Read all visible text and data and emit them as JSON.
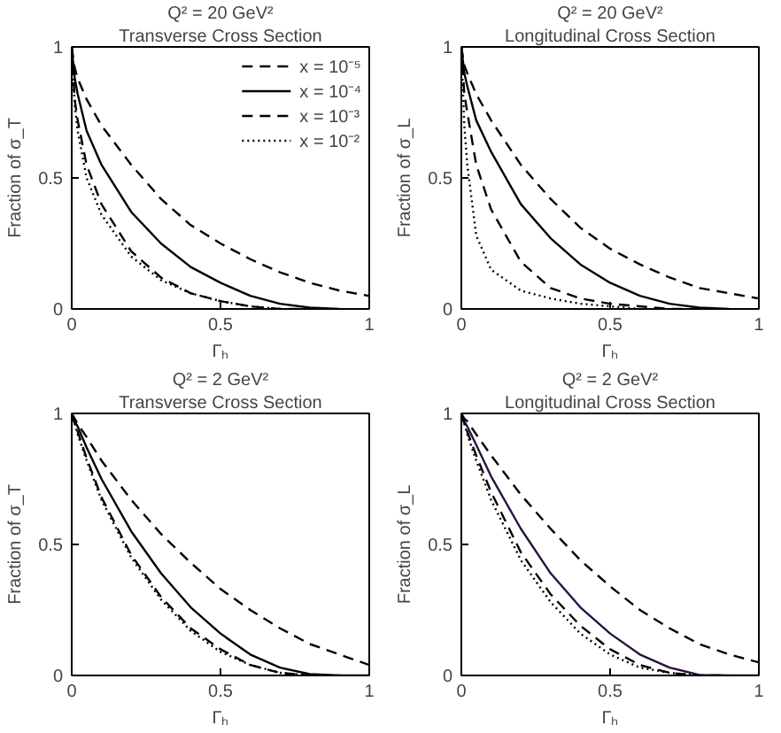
{
  "chart_data": [
    {
      "type": "line",
      "title": "Q² = 20 GeV²",
      "subtitle": "Transverse Cross Section",
      "xlabel": "Γₕ",
      "ylabel": "Fraction of σ_T",
      "xlim": [
        0,
        1
      ],
      "ylim": [
        0,
        1
      ],
      "xticks": [
        0,
        0.5,
        1
      ],
      "yticks": [
        0,
        0.5,
        1
      ],
      "grid": false,
      "legend": "top right",
      "x": [
        0,
        0.01,
        0.02,
        0.05,
        0.1,
        0.2,
        0.3,
        0.4,
        0.5,
        0.6,
        0.7,
        0.8,
        0.9,
        1
      ],
      "series": [
        {
          "name": "x = 10⁻⁵",
          "color": "#000000",
          "line_style": "dashed",
          "values": [
            1,
            0.92,
            0.88,
            0.8,
            0.7,
            0.55,
            0.42,
            0.32,
            0.25,
            0.19,
            0.14,
            0.1,
            0.07,
            0.05
          ]
        },
        {
          "name": "x = 10⁻⁴",
          "color": "#000000",
          "line_style": "solid",
          "values": [
            1,
            0.88,
            0.82,
            0.68,
            0.55,
            0.37,
            0.25,
            0.16,
            0.1,
            0.05,
            0.02,
            0.005,
            0,
            null
          ]
        },
        {
          "name": "x = 10⁻³",
          "color": "#000000",
          "line_style": "dashed",
          "values": [
            1,
            0.8,
            0.72,
            0.55,
            0.4,
            0.22,
            0.12,
            0.06,
            0.03,
            0.01,
            0,
            0,
            null,
            null
          ]
        },
        {
          "name": "x = 10⁻²",
          "color": "#000000",
          "line_style": "dotted",
          "values": [
            1,
            0.78,
            0.68,
            0.5,
            0.36,
            0.2,
            0.11,
            0.06,
            0.03,
            0.01,
            0,
            null,
            null,
            null
          ]
        }
      ]
    },
    {
      "type": "line",
      "title": "Q² = 20 GeV²",
      "subtitle": "Longitudinal Cross Section",
      "xlabel": "Γₕ",
      "ylabel": "Fraction of σ_L",
      "xlim": [
        0,
        1
      ],
      "ylim": [
        0,
        1
      ],
      "xticks": [
        0,
        0.5,
        1
      ],
      "yticks": [
        0,
        0.5,
        1
      ],
      "grid": false,
      "x": [
        0,
        0.01,
        0.02,
        0.05,
        0.1,
        0.2,
        0.3,
        0.4,
        0.5,
        0.6,
        0.7,
        0.8,
        0.9,
        1
      ],
      "series": [
        {
          "color": "#000000",
          "line_style": "dashed",
          "values": [
            1,
            0.93,
            0.9,
            0.82,
            0.72,
            0.55,
            0.42,
            0.31,
            0.23,
            0.17,
            0.12,
            0.08,
            0.06,
            0.04
          ]
        },
        {
          "color": "#000000",
          "line_style": "solid",
          "values": [
            1,
            0.9,
            0.85,
            0.72,
            0.6,
            0.4,
            0.27,
            0.17,
            0.1,
            0.05,
            0.02,
            0.005,
            0,
            null
          ]
        },
        {
          "color": "#000000",
          "line_style": "dashed",
          "values": [
            1,
            0.82,
            0.75,
            0.55,
            0.38,
            0.18,
            0.08,
            0.04,
            0.02,
            0.01,
            0,
            0,
            null,
            null
          ]
        },
        {
          "color": "#000000",
          "line_style": "dotted",
          "values": [
            1,
            0.7,
            0.55,
            0.28,
            0.15,
            0.07,
            0.04,
            0.02,
            0.01,
            0,
            null,
            null,
            null,
            null
          ]
        }
      ]
    },
    {
      "type": "line",
      "title": "Q² = 2 GeV²",
      "subtitle": "Transverse Cross Section",
      "xlabel": "Γₕ",
      "ylabel": "Fraction of σ_T",
      "xlim": [
        0,
        1
      ],
      "ylim": [
        0,
        1
      ],
      "xticks": [
        0,
        0.5,
        1
      ],
      "yticks": [
        0,
        0.5,
        1
      ],
      "grid": false,
      "x": [
        0,
        0.01,
        0.02,
        0.05,
        0.1,
        0.2,
        0.3,
        0.4,
        0.5,
        0.6,
        0.7,
        0.8,
        0.9,
        1
      ],
      "series": [
        {
          "color": "#000000",
          "line_style": "dashed",
          "values": [
            1,
            0.98,
            0.96,
            0.91,
            0.82,
            0.67,
            0.54,
            0.43,
            0.33,
            0.25,
            0.18,
            0.12,
            0.08,
            0.04
          ]
        },
        {
          "color": "#000000",
          "line_style": "solid",
          "values": [
            1,
            0.97,
            0.95,
            0.87,
            0.75,
            0.55,
            0.39,
            0.26,
            0.16,
            0.08,
            0.03,
            0.005,
            0,
            0
          ]
        },
        {
          "color": "#000000",
          "line_style": "dashed",
          "values": [
            1,
            0.96,
            0.93,
            0.83,
            0.68,
            0.46,
            0.3,
            0.18,
            0.1,
            0.04,
            0.01,
            0,
            0,
            null
          ]
        },
        {
          "color": "#000000",
          "line_style": "dotted",
          "values": [
            1,
            0.96,
            0.92,
            0.82,
            0.67,
            0.45,
            0.29,
            0.17,
            0.09,
            0.04,
            0.01,
            0,
            null,
            null
          ]
        }
      ]
    },
    {
      "type": "line",
      "title": "Q² = 2 GeV²",
      "subtitle": "Longitudinal Cross Section",
      "xlabel": "Γₕ",
      "ylabel": "Fraction of σ_L",
      "xlim": [
        0,
        1
      ],
      "ylim": [
        0,
        1
      ],
      "xticks": [
        0,
        0.5,
        1
      ],
      "yticks": [
        0,
        0.5,
        1
      ],
      "grid": false,
      "x": [
        0,
        0.01,
        0.02,
        0.05,
        0.1,
        0.2,
        0.3,
        0.4,
        0.5,
        0.6,
        0.7,
        0.8,
        0.9,
        1
      ],
      "series": [
        {
          "color": "#000000",
          "line_style": "dashed",
          "values": [
            1,
            0.98,
            0.97,
            0.92,
            0.84,
            0.69,
            0.56,
            0.44,
            0.34,
            0.25,
            0.18,
            0.12,
            0.08,
            0.05
          ]
        },
        {
          "color": "#2a1040",
          "line_style": "solid",
          "values": [
            1,
            0.97,
            0.95,
            0.88,
            0.76,
            0.56,
            0.39,
            0.26,
            0.16,
            0.08,
            0.03,
            0.002,
            0,
            0
          ]
        },
        {
          "color": "#000000",
          "line_style": "dashed",
          "values": [
            1,
            0.96,
            0.93,
            0.84,
            0.7,
            0.47,
            0.31,
            0.19,
            0.1,
            0.04,
            0.01,
            0,
            0,
            null
          ]
        },
        {
          "color": "#000000",
          "line_style": "dotted",
          "values": [
            1,
            0.96,
            0.92,
            0.82,
            0.67,
            0.44,
            0.28,
            0.16,
            0.08,
            0.03,
            0.01,
            0,
            null,
            null
          ]
        }
      ]
    }
  ]
}
